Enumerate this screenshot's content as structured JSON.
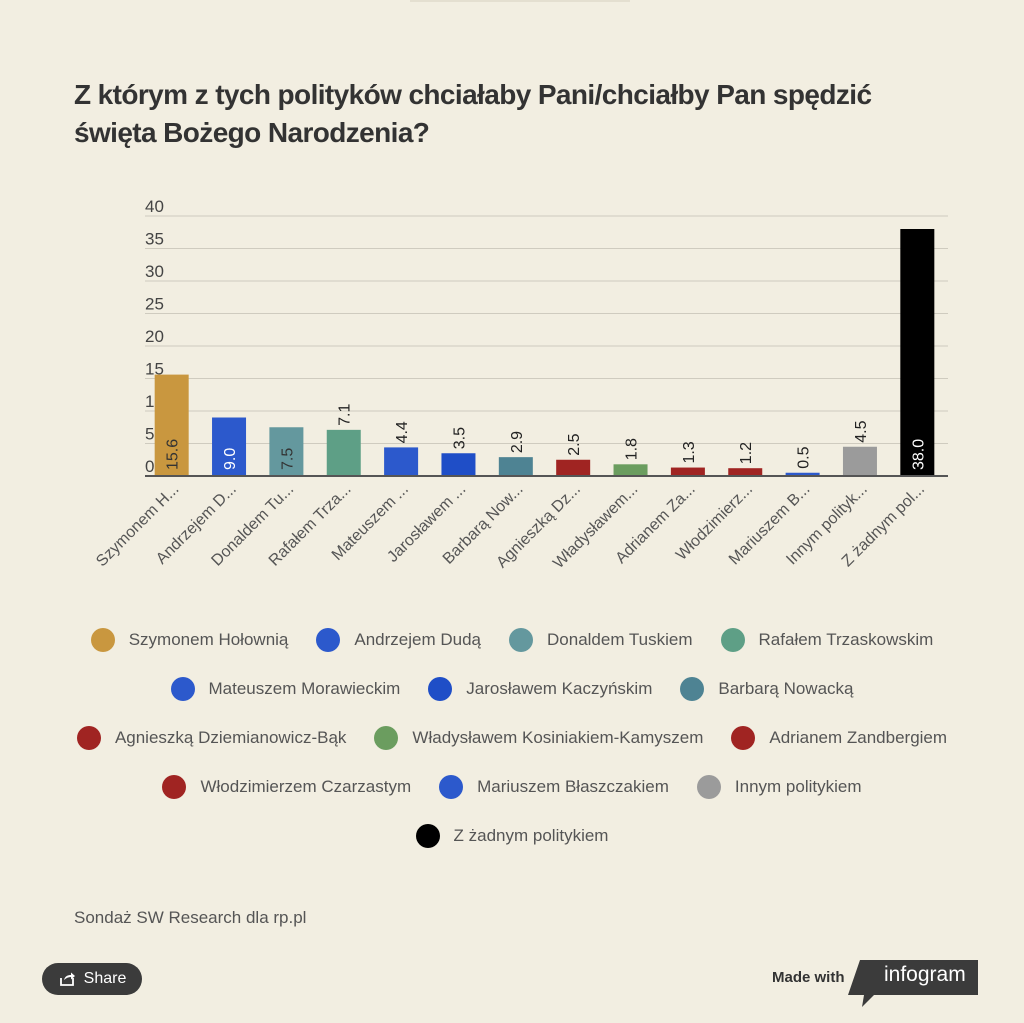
{
  "title": "Z którym z tych polityków chciałaby Pani/chciałby Pan spędzić święta Bożego Narodzenia?",
  "source": "Sondaż SW Research dla rp.pl",
  "share_label": "Share",
  "made_with_label": "Made with",
  "brand_label": "infogram",
  "chart_data": {
    "type": "bar",
    "title": "Z którym z tych polityków chciałaby Pani/chciałby Pan spędzić święta Bożego Narodzenia?",
    "xlabel": "",
    "ylabel": "",
    "ylim": [
      0,
      40
    ],
    "yticks": [
      0,
      5,
      10,
      15,
      20,
      25,
      30,
      35,
      40
    ],
    "grid": true,
    "legend_position": "bottom",
    "categories": [
      "Szymonem Hołownią",
      "Andrzejem Dudą",
      "Donaldem Tuskiem",
      "Rafałem Trzaskowskim",
      "Mateuszem Morawieckim",
      "Jarosławem Kaczyńskim",
      "Barbarą Nowacką",
      "Agnieszką Dziemianowicz-Bąk",
      "Władysławem Kosiniakiem-Kamyszem",
      "Adrianem Zandbergiem",
      "Włodzimierzem Czarzastym",
      "Mariuszem Błaszczakiem",
      "Innym politykiem",
      "Z żadnym politykiem"
    ],
    "tick_labels": [
      "Szymonem H...",
      "Andrzejem D...",
      "Donaldem Tu...",
      "Rafałem Trza...",
      "Mateuszem ...",
      "Jarosławem ...",
      "Barbarą Now...",
      "Agnieszką Dz...",
      "Władysławem...",
      "Adrianem Za...",
      "Włodzimierz...",
      "Mariuszem B...",
      "Innym polityk...",
      "Z żadnym pol..."
    ],
    "values": [
      15.6,
      9.0,
      7.5,
      7.1,
      4.4,
      3.5,
      2.9,
      2.5,
      1.8,
      1.3,
      1.2,
      0.5,
      4.5,
      38.0
    ],
    "value_labels": [
      "15.6",
      "9.0",
      "7.5",
      "7.1",
      "4.4",
      "3.5",
      "2.9",
      "2.5",
      "1.8",
      "1.3",
      "1.2",
      "0.5",
      "4.5",
      "38.0"
    ],
    "colors": [
      "#c9973f",
      "#2c59cc",
      "#64989e",
      "#5e9f86",
      "#2c59cc",
      "#1f4ec7",
      "#4e8393",
      "#a02422",
      "#6b9d5f",
      "#a02422",
      "#a02422",
      "#2c59cc",
      "#9b9b9b",
      "#000000"
    ]
  },
  "legend_rows": [
    [
      0,
      1,
      2,
      3
    ],
    [
      4,
      5,
      6
    ],
    [
      7,
      8,
      9
    ],
    [
      10,
      11,
      12
    ],
    [
      13
    ]
  ]
}
